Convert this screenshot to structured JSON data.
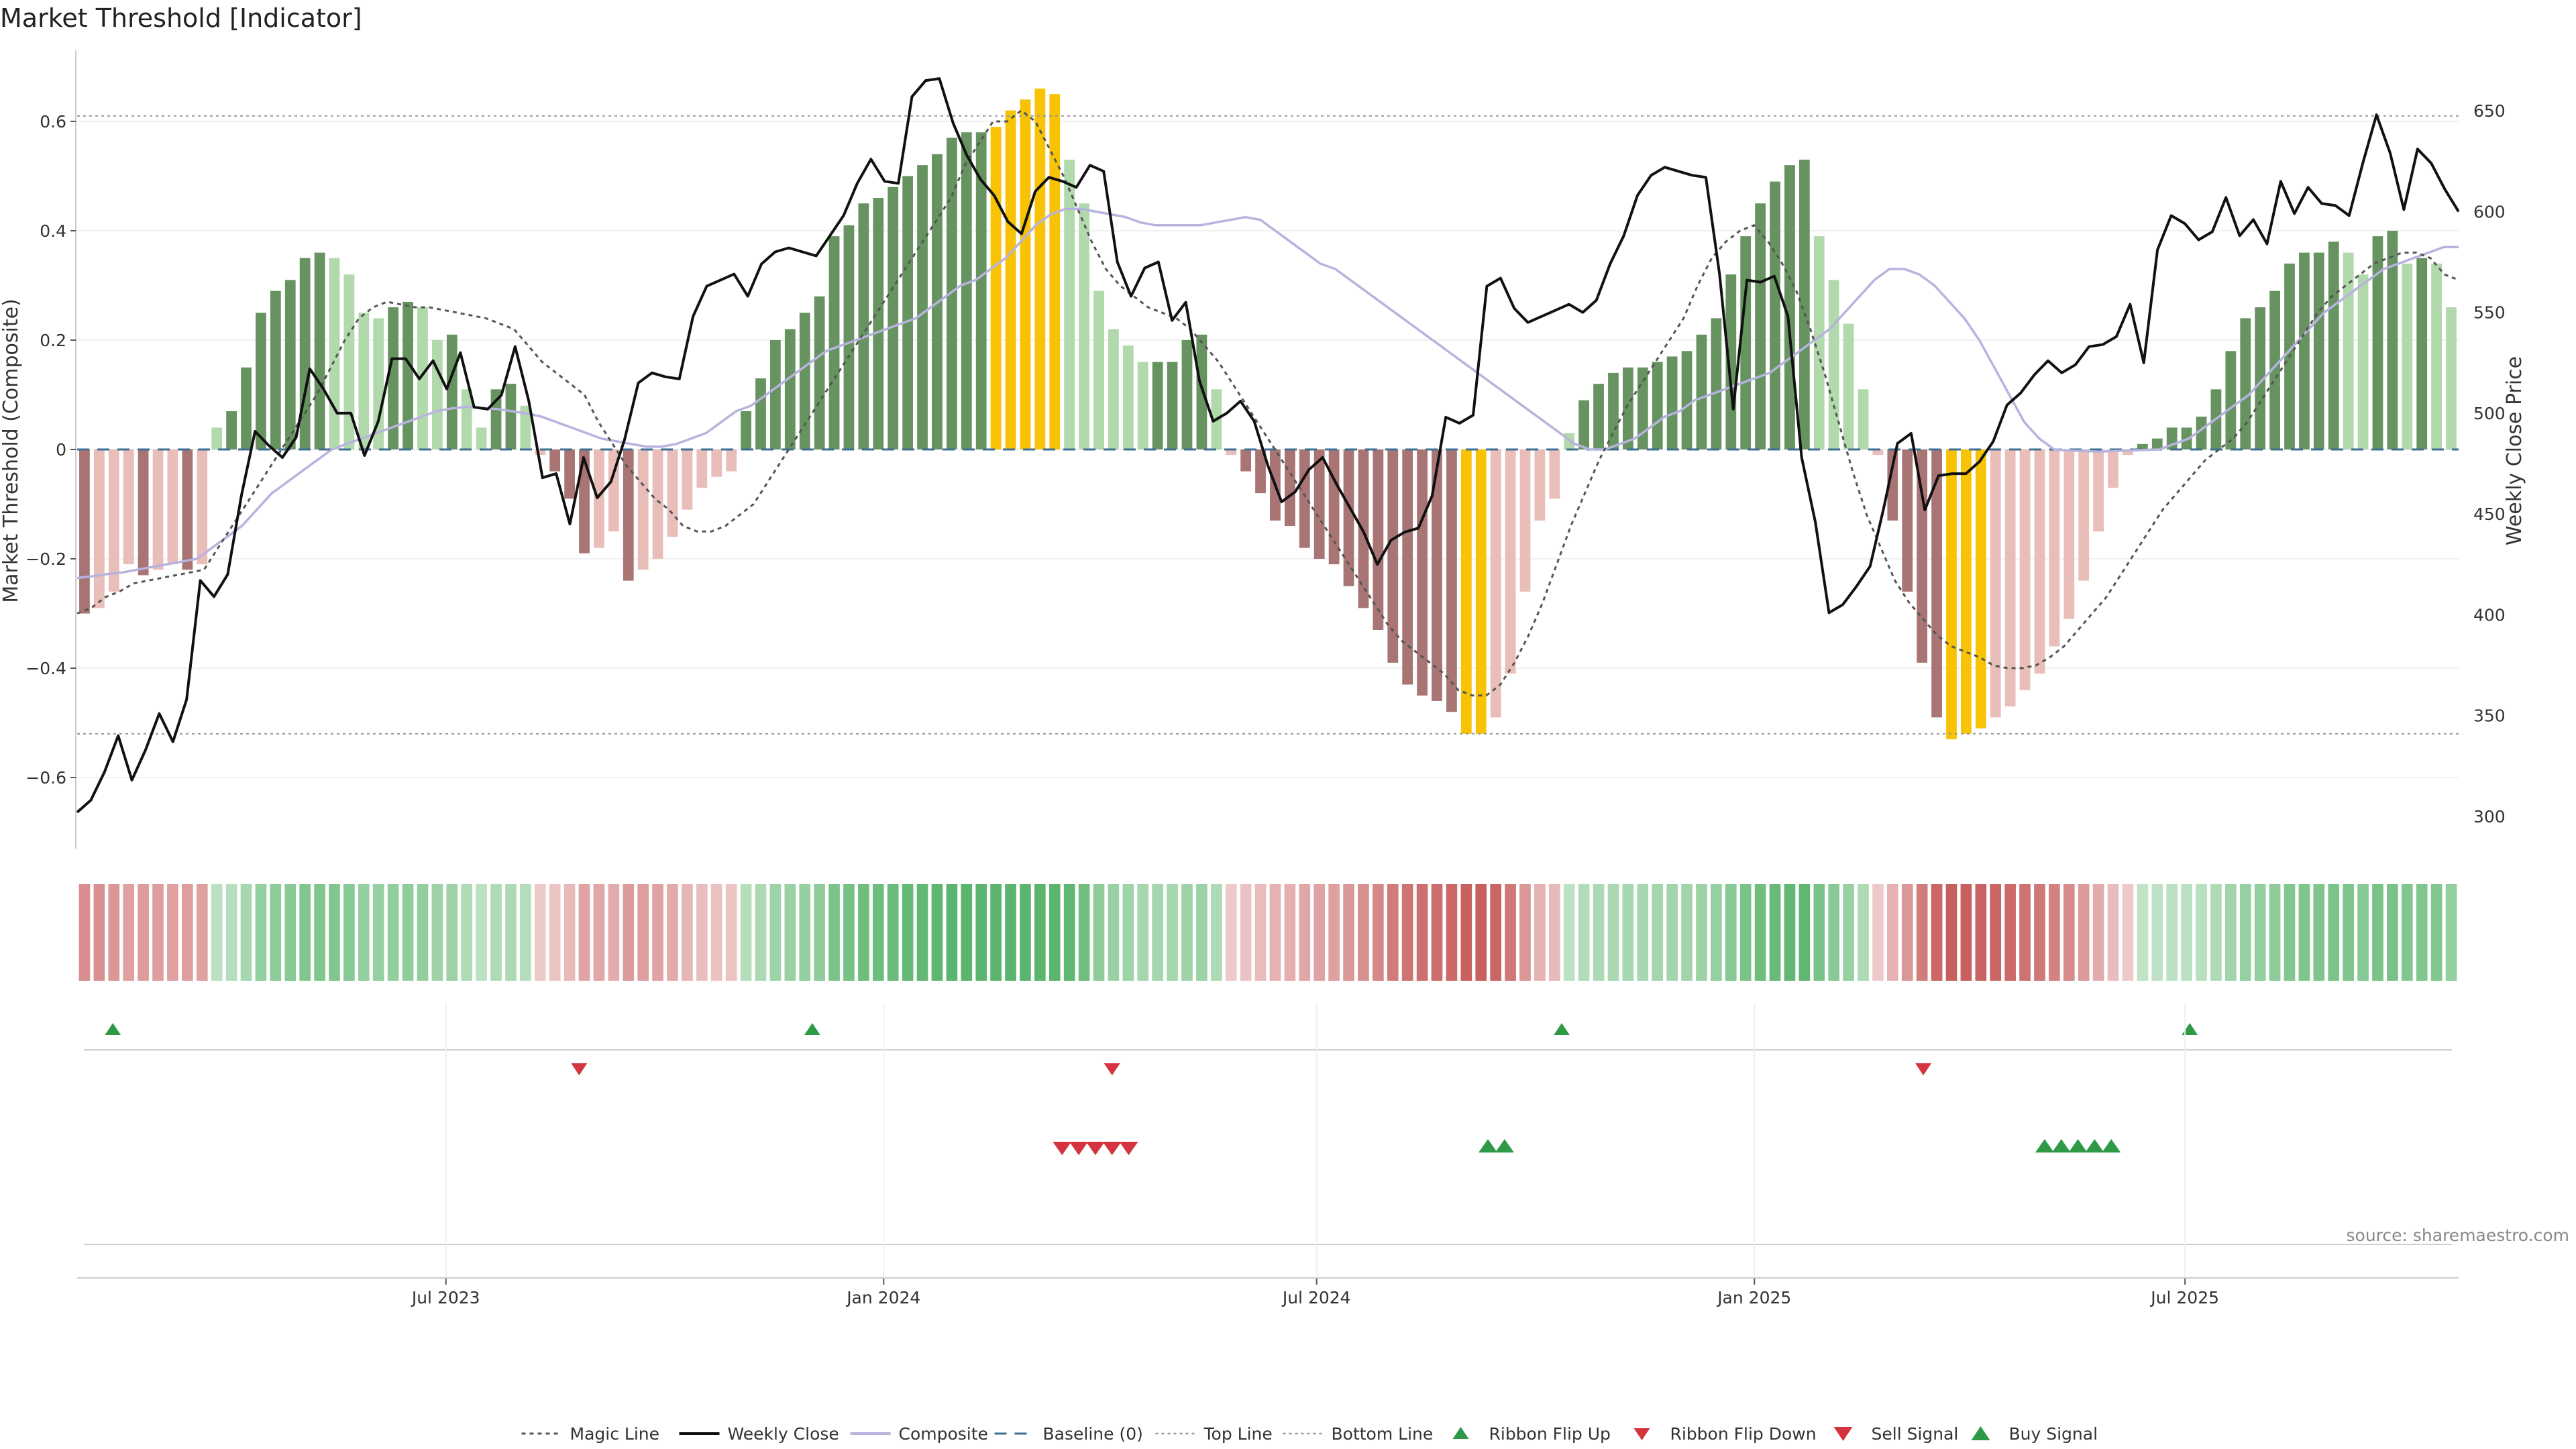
{
  "title": "Market Threshold [Indicator]",
  "source": "source: sharemaestro.com",
  "colors": {
    "bull_strong": "#66935f",
    "bull_weak": "#b1d9ac",
    "bear_strong": "#a97474",
    "bear_weak": "#e9bdb8",
    "extreme": "#f7c304",
    "weekly_close": "#111111",
    "composite": "#b7b3df",
    "magic": "#555555",
    "baseline": "#3f6f93",
    "threshold": "#999999",
    "signal_up": "#2e9a47",
    "signal_down": "#d3343e"
  },
  "chart_data": {
    "type": "bar",
    "ylabel": "Market Threshold (Composite)",
    "y2label": "Weekly Close Price",
    "ylim": [
      -0.73,
      0.73
    ],
    "y2lim": [
      284,
      680
    ],
    "yticks": [
      -0.6,
      -0.4,
      -0.2,
      0,
      0.2,
      0.4,
      0.6
    ],
    "y2ticks": [
      300,
      350,
      400,
      450,
      500,
      550,
      600,
      650
    ],
    "x_start": "2023-01-27",
    "x_end": "2025-10-24",
    "xticks": [
      {
        "label": "Jul 2023",
        "date": "2023-07-01"
      },
      {
        "label": "Jan 2024",
        "date": "2024-01-01"
      },
      {
        "label": "Jul 2024",
        "date": "2024-07-01"
      },
      {
        "label": "Jan 2025",
        "date": "2025-01-01"
      },
      {
        "label": "Jul 2025",
        "date": "2025-07-01"
      }
    ],
    "top_line": 0.61,
    "bottom_line": -0.52,
    "composite_bars": [
      -0.3,
      -0.29,
      -0.26,
      -0.21,
      -0.23,
      -0.22,
      -0.21,
      -0.22,
      -0.21,
      0.04,
      0.07,
      0.15,
      0.25,
      0.29,
      0.31,
      0.35,
      0.36,
      0.35,
      0.32,
      0.25,
      0.24,
      0.26,
      0.27,
      0.26,
      0.2,
      0.21,
      0.11,
      0.04,
      0.11,
      0.12,
      0.08,
      -0.01,
      -0.04,
      -0.09,
      -0.19,
      -0.18,
      -0.15,
      -0.24,
      -0.22,
      -0.2,
      -0.16,
      -0.11,
      -0.07,
      -0.05,
      -0.04,
      0.07,
      0.13,
      0.2,
      0.22,
      0.25,
      0.28,
      0.39,
      0.41,
      0.45,
      0.46,
      0.48,
      0.5,
      0.52,
      0.54,
      0.57,
      0.58,
      0.58,
      0.59,
      0.62,
      0.64,
      0.66,
      0.65,
      0.53,
      0.45,
      0.29,
      0.22,
      0.19,
      0.16,
      0.16,
      0.16,
      0.2,
      0.21,
      0.11,
      -0.01,
      -0.04,
      -0.08,
      -0.13,
      -0.14,
      -0.18,
      -0.2,
      -0.21,
      -0.25,
      -0.29,
      -0.33,
      -0.39,
      -0.43,
      -0.45,
      -0.46,
      -0.48,
      -0.52,
      -0.52,
      -0.49,
      -0.41,
      -0.26,
      -0.13,
      -0.09,
      0.03,
      0.09,
      0.12,
      0.14,
      0.15,
      0.15,
      0.16,
      0.17,
      0.18,
      0.21,
      0.24,
      0.32,
      0.39,
      0.45,
      0.49,
      0.52,
      0.53,
      0.39,
      0.31,
      0.23,
      0.11,
      -0.01,
      -0.13,
      -0.26,
      -0.39,
      -0.49,
      -0.53,
      -0.52,
      -0.51,
      -0.49,
      -0.47,
      -0.44,
      -0.41,
      -0.36,
      -0.31,
      -0.24,
      -0.15,
      -0.07,
      -0.01,
      0.01,
      0.02,
      0.04,
      0.04,
      0.06,
      0.11,
      0.18,
      0.24,
      0.26,
      0.29,
      0.34,
      0.36,
      0.36,
      0.38,
      0.36,
      0.32,
      0.39,
      0.4,
      0.34,
      0.35,
      0.34,
      0.26
    ],
    "weekly_close": [
      302,
      308,
      322,
      340,
      318,
      333,
      351,
      337,
      358,
      417,
      409,
      420,
      459,
      491,
      484,
      478,
      488,
      522,
      512,
      500,
      500,
      479,
      496,
      527,
      527,
      517,
      526,
      512,
      530,
      503,
      502,
      509,
      533,
      506,
      468,
      470,
      445,
      478,
      458,
      466,
      487,
      515,
      520,
      518,
      517,
      548,
      563,
      566,
      569,
      558,
      574,
      580,
      582,
      580,
      578,
      588,
      598,
      614,
      626,
      615,
      614,
      657,
      665,
      666,
      644,
      628,
      616,
      608,
      595,
      589,
      610,
      617,
      615,
      612,
      623,
      620,
      575,
      558,
      572,
      575,
      546,
      555,
      516,
      496,
      500,
      506,
      496,
      474,
      456,
      461,
      472,
      478,
      465,
      453,
      441,
      425,
      437,
      441,
      443,
      459,
      498,
      495,
      499,
      563,
      567,
      552,
      545,
      548,
      551,
      554,
      550,
      556,
      574,
      588,
      608,
      618,
      622,
      620,
      618,
      617,
      569,
      502,
      566,
      565,
      568,
      548,
      478,
      446,
      401,
      405,
      414,
      424,
      453,
      485,
      490,
      452,
      469,
      470,
      470,
      476,
      486,
      504,
      510,
      519,
      526,
      520,
      524,
      533,
      534,
      538,
      554,
      525,
      581,
      598,
      594,
      586,
      590,
      607,
      588,
      596,
      584,
      615,
      599,
      612,
      604,
      603,
      598,
      624,
      648,
      629,
      601,
      631,
      624,
      611,
      600
    ],
    "composite_line": [
      -0.235,
      -0.232,
      -0.228,
      -0.225,
      -0.22,
      -0.215,
      -0.21,
      -0.205,
      -0.2,
      -0.18,
      -0.16,
      -0.14,
      -0.11,
      -0.08,
      -0.06,
      -0.04,
      -0.02,
      0.0,
      0.01,
      0.02,
      0.03,
      0.04,
      0.05,
      0.06,
      0.07,
      0.075,
      0.078,
      0.076,
      0.074,
      0.07,
      0.066,
      0.06,
      0.05,
      0.04,
      0.03,
      0.02,
      0.015,
      0.01,
      0.005,
      0.005,
      0.01,
      0.02,
      0.03,
      0.05,
      0.07,
      0.08,
      0.1,
      0.12,
      0.14,
      0.16,
      0.18,
      0.19,
      0.2,
      0.21,
      0.22,
      0.23,
      0.24,
      0.26,
      0.28,
      0.3,
      0.31,
      0.33,
      0.35,
      0.38,
      0.41,
      0.43,
      0.44,
      0.44,
      0.435,
      0.43,
      0.425,
      0.415,
      0.41,
      0.41,
      0.41,
      0.41,
      0.415,
      0.42,
      0.425,
      0.42,
      0.4,
      0.38,
      0.36,
      0.34,
      0.33,
      0.31,
      0.29,
      0.27,
      0.25,
      0.23,
      0.21,
      0.19,
      0.17,
      0.15,
      0.13,
      0.11,
      0.09,
      0.07,
      0.05,
      0.03,
      0.01,
      0.0,
      0.0,
      0.01,
      0.02,
      0.04,
      0.06,
      0.07,
      0.09,
      0.1,
      0.11,
      0.12,
      0.13,
      0.14,
      0.16,
      0.18,
      0.2,
      0.22,
      0.25,
      0.28,
      0.31,
      0.33,
      0.33,
      0.32,
      0.3,
      0.27,
      0.24,
      0.2,
      0.15,
      0.1,
      0.05,
      0.02,
      0.0,
      -0.002,
      -0.003,
      -0.004,
      -0.003,
      -0.002,
      -0.001,
      0.0,
      0.01,
      0.02,
      0.04,
      0.06,
      0.08,
      0.1,
      0.13,
      0.16,
      0.19,
      0.22,
      0.25,
      0.27,
      0.29,
      0.31,
      0.33,
      0.34,
      0.35,
      0.36,
      0.37,
      0.37
    ],
    "magic_line": [
      -0.3,
      -0.29,
      -0.27,
      -0.26,
      -0.245,
      -0.24,
      -0.235,
      -0.23,
      -0.225,
      -0.22,
      -0.18,
      -0.14,
      -0.1,
      -0.06,
      -0.02,
      0.02,
      0.06,
      0.1,
      0.15,
      0.2,
      0.24,
      0.26,
      0.27,
      0.265,
      0.26,
      0.26,
      0.255,
      0.25,
      0.245,
      0.24,
      0.23,
      0.22,
      0.19,
      0.16,
      0.14,
      0.12,
      0.1,
      0.05,
      0.01,
      -0.03,
      -0.06,
      -0.09,
      -0.11,
      -0.14,
      -0.15,
      -0.15,
      -0.14,
      -0.12,
      -0.1,
      -0.06,
      -0.02,
      0.02,
      0.06,
      0.1,
      0.14,
      0.18,
      0.22,
      0.26,
      0.3,
      0.34,
      0.38,
      0.42,
      0.46,
      0.52,
      0.56,
      0.6,
      0.6,
      0.62,
      0.6,
      0.55,
      0.5,
      0.44,
      0.38,
      0.33,
      0.3,
      0.28,
      0.26,
      0.25,
      0.24,
      0.22,
      0.19,
      0.16,
      0.12,
      0.08,
      0.04,
      0.0,
      -0.04,
      -0.08,
      -0.12,
      -0.16,
      -0.2,
      -0.24,
      -0.28,
      -0.32,
      -0.35,
      -0.37,
      -0.39,
      -0.41,
      -0.44,
      -0.45,
      -0.45,
      -0.43,
      -0.39,
      -0.34,
      -0.28,
      -0.21,
      -0.14,
      -0.08,
      -0.02,
      0.03,
      0.08,
      0.12,
      0.16,
      0.2,
      0.24,
      0.3,
      0.35,
      0.38,
      0.4,
      0.41,
      0.38,
      0.34,
      0.29,
      0.22,
      0.14,
      0.05,
      -0.04,
      -0.12,
      -0.18,
      -0.24,
      -0.28,
      -0.31,
      -0.34,
      -0.36,
      -0.37,
      -0.38,
      -0.395,
      -0.4,
      -0.4,
      -0.395,
      -0.38,
      -0.36,
      -0.33,
      -0.3,
      -0.27,
      -0.23,
      -0.19,
      -0.15,
      -0.11,
      -0.08,
      -0.05,
      -0.02,
      0.0,
      0.02,
      0.05,
      0.09,
      0.13,
      0.17,
      0.21,
      0.25,
      0.28,
      0.3,
      0.32,
      0.34,
      0.35,
      0.36,
      0.36,
      0.35,
      0.32,
      0.31
    ],
    "ribbon_flip_up_dates": [
      "2023-02-11",
      "2023-12-02",
      "2024-10-12",
      "2025-07-03"
    ],
    "ribbon_flip_down_dates": [
      "2023-08-26",
      "2024-04-06",
      "2025-03-13"
    ],
    "sell_signal_dates": [
      "2024-03-16",
      "2024-03-23",
      "2024-03-30",
      "2024-04-06",
      "2024-04-13"
    ],
    "buy_signal_dates": [
      "2024-09-11",
      "2024-09-18",
      "2025-05-03",
      "2025-05-10",
      "2025-05-17",
      "2025-05-24",
      "2025-05-31"
    ],
    "legend": [
      {
        "label": "Magic Line",
        "kind": "magic"
      },
      {
        "label": "Weekly Close",
        "kind": "close"
      },
      {
        "label": "Composite",
        "kind": "composite"
      },
      {
        "label": "Baseline (0)",
        "kind": "baseline"
      },
      {
        "label": "Top Line",
        "kind": "top"
      },
      {
        "label": "Bottom Line",
        "kind": "bottom"
      },
      {
        "label": "Ribbon Flip Up",
        "kind": "flip_up"
      },
      {
        "label": "Ribbon Flip Down",
        "kind": "flip_down"
      },
      {
        "label": "Sell Signal",
        "kind": "sell"
      },
      {
        "label": "Buy Signal",
        "kind": "buy"
      }
    ]
  }
}
